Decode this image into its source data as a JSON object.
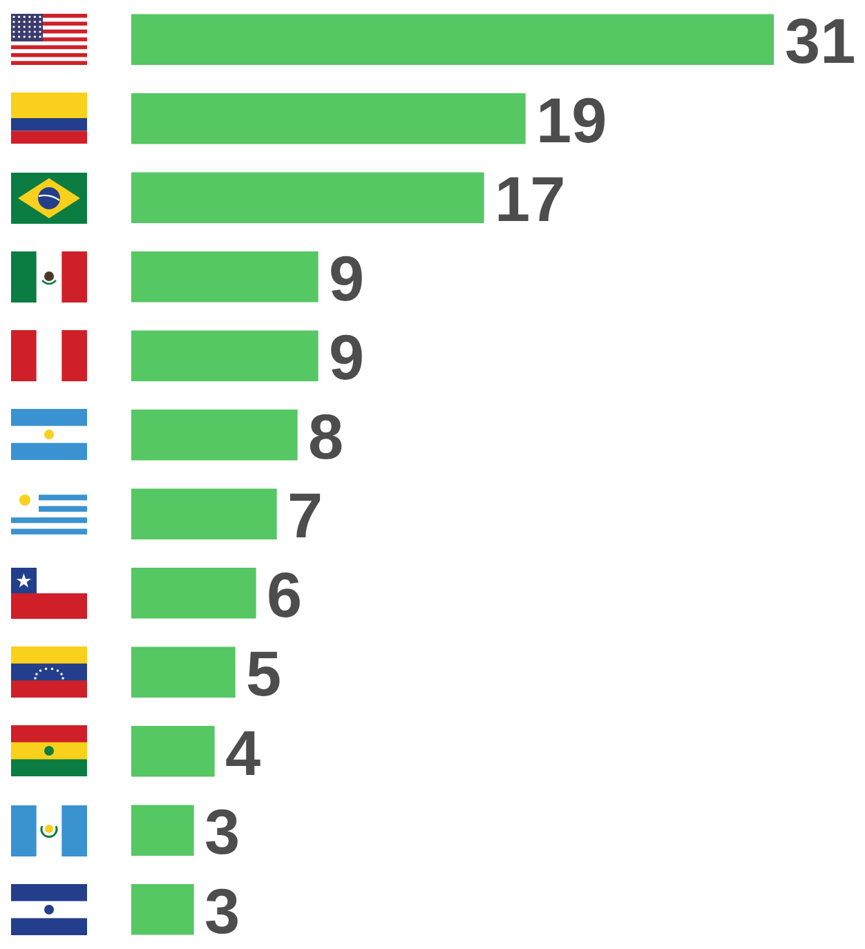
{
  "chart_data": {
    "type": "bar",
    "orientation": "horizontal",
    "categories": [
      null,
      null,
      null,
      null,
      null,
      null,
      null,
      null,
      null,
      null,
      null,
      null
    ],
    "values": [
      31,
      19,
      17,
      9,
      9,
      8,
      7,
      6,
      5,
      4,
      3,
      3
    ],
    "color": "#55c763",
    "data_labels": true,
    "tick_labels": false
  }
}
